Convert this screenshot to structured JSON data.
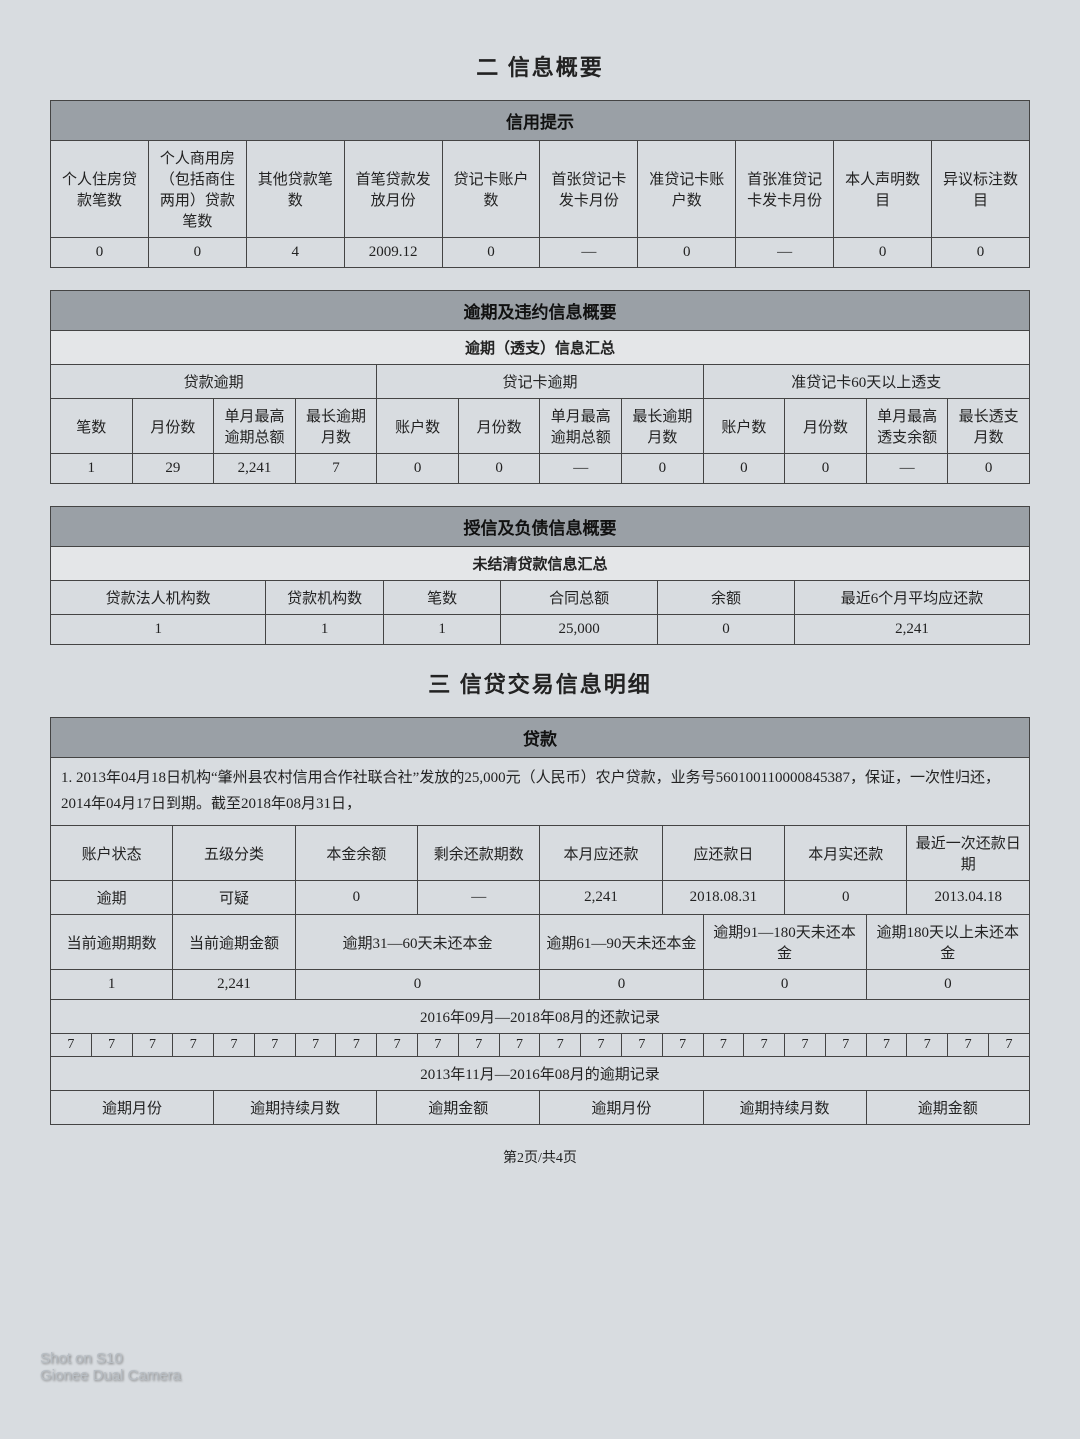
{
  "section2_title": "二 信息概要",
  "section3_title": "三 信贷交易信息明细",
  "footer": "第2页/共4页",
  "watermark_line1": "Shot on S10",
  "watermark_line2": "Gionee Dual Camera",
  "t1": {
    "band": "信用提示",
    "headers": [
      "个人住房贷款笔数",
      "个人商用房（包括商住两用）贷款笔数",
      "其他贷款笔数",
      "首笔贷款发放月份",
      "贷记卡账户数",
      "首张贷记卡 发卡月份",
      "准贷记卡账户数",
      "首张准贷记卡发卡月份",
      "本人声明数目",
      "异议标注数目"
    ],
    "row": [
      "0",
      "0",
      "4",
      "2009.12",
      "0",
      "—",
      "0",
      "—",
      "0",
      "0"
    ]
  },
  "t2": {
    "band": "逾期及违约信息概要",
    "subband": "逾期（透支）信息汇总",
    "group1": "贷款逾期",
    "group2": "贷记卡逾期",
    "group3": "准贷记卡60天以上透支",
    "h": [
      "笔数",
      "月份数",
      "单月最高逾期总额",
      "最长逾期月数",
      "账户数",
      "月份数",
      "单月最高逾期总额",
      "最长逾期月数",
      "账户数",
      "月份数",
      "单月最高透支余额",
      "最长透支月数"
    ],
    "row": [
      "1",
      "29",
      "2,241",
      "7",
      "0",
      "0",
      "—",
      "0",
      "0",
      "0",
      "—",
      "0"
    ]
  },
  "t3": {
    "band": "授信及负债信息概要",
    "subband": "未结清贷款信息汇总",
    "headers": [
      "贷款法人机构数",
      "贷款机构数",
      "笔数",
      "合同总额",
      "余额",
      "最近6个月平均应还款"
    ],
    "row": [
      "1",
      "1",
      "1",
      "25,000",
      "0",
      "2,241"
    ]
  },
  "t4": {
    "band": "贷款",
    "note": "1. 2013年04月18日机构“肇州县农村信用合作社联合社”发放的25,000元（人民币）农户贷款，业务号560100110000845387，保证，一次性归还，2014年04月17日到期。截至2018年08月31日，",
    "h1": [
      "账户状态",
      "五级分类",
      "本金余额",
      "剩余还款期数",
      "本月应还款",
      "应还款日",
      "本月实还款",
      "最近一次还款日期"
    ],
    "r1": [
      "逾期",
      "可疑",
      "0",
      "—",
      "2,241",
      "2018.08.31",
      "0",
      "2013.04.18"
    ],
    "h2": [
      "当前逾期期数",
      "当前逾期金额",
      "逾期31—60天未还本金",
      "逾期61—90天未还本金",
      "逾期91—180天未还本金",
      "逾期180天以上未还本金"
    ],
    "r2": [
      "1",
      "2,241",
      "0",
      "0",
      "0",
      "0"
    ],
    "rec1_title": "2016年09月—2018年08月的还款记录",
    "rec1": [
      "7",
      "7",
      "7",
      "7",
      "7",
      "7",
      "7",
      "7",
      "7",
      "7",
      "7",
      "7",
      "7",
      "7",
      "7",
      "7",
      "7",
      "7",
      "7",
      "7",
      "7",
      "7",
      "7",
      "7"
    ],
    "rec2_title": "2013年11月—2016年08月的逾期记录",
    "rec2_headers": [
      "逾期月份",
      "逾期持续月数",
      "逾期金额",
      "逾期月份",
      "逾期持续月数",
      "逾期金额"
    ]
  },
  "colors": {
    "band_bg": "#9aa0a6",
    "page_bg": "#d8dce0",
    "border": "#444444"
  }
}
